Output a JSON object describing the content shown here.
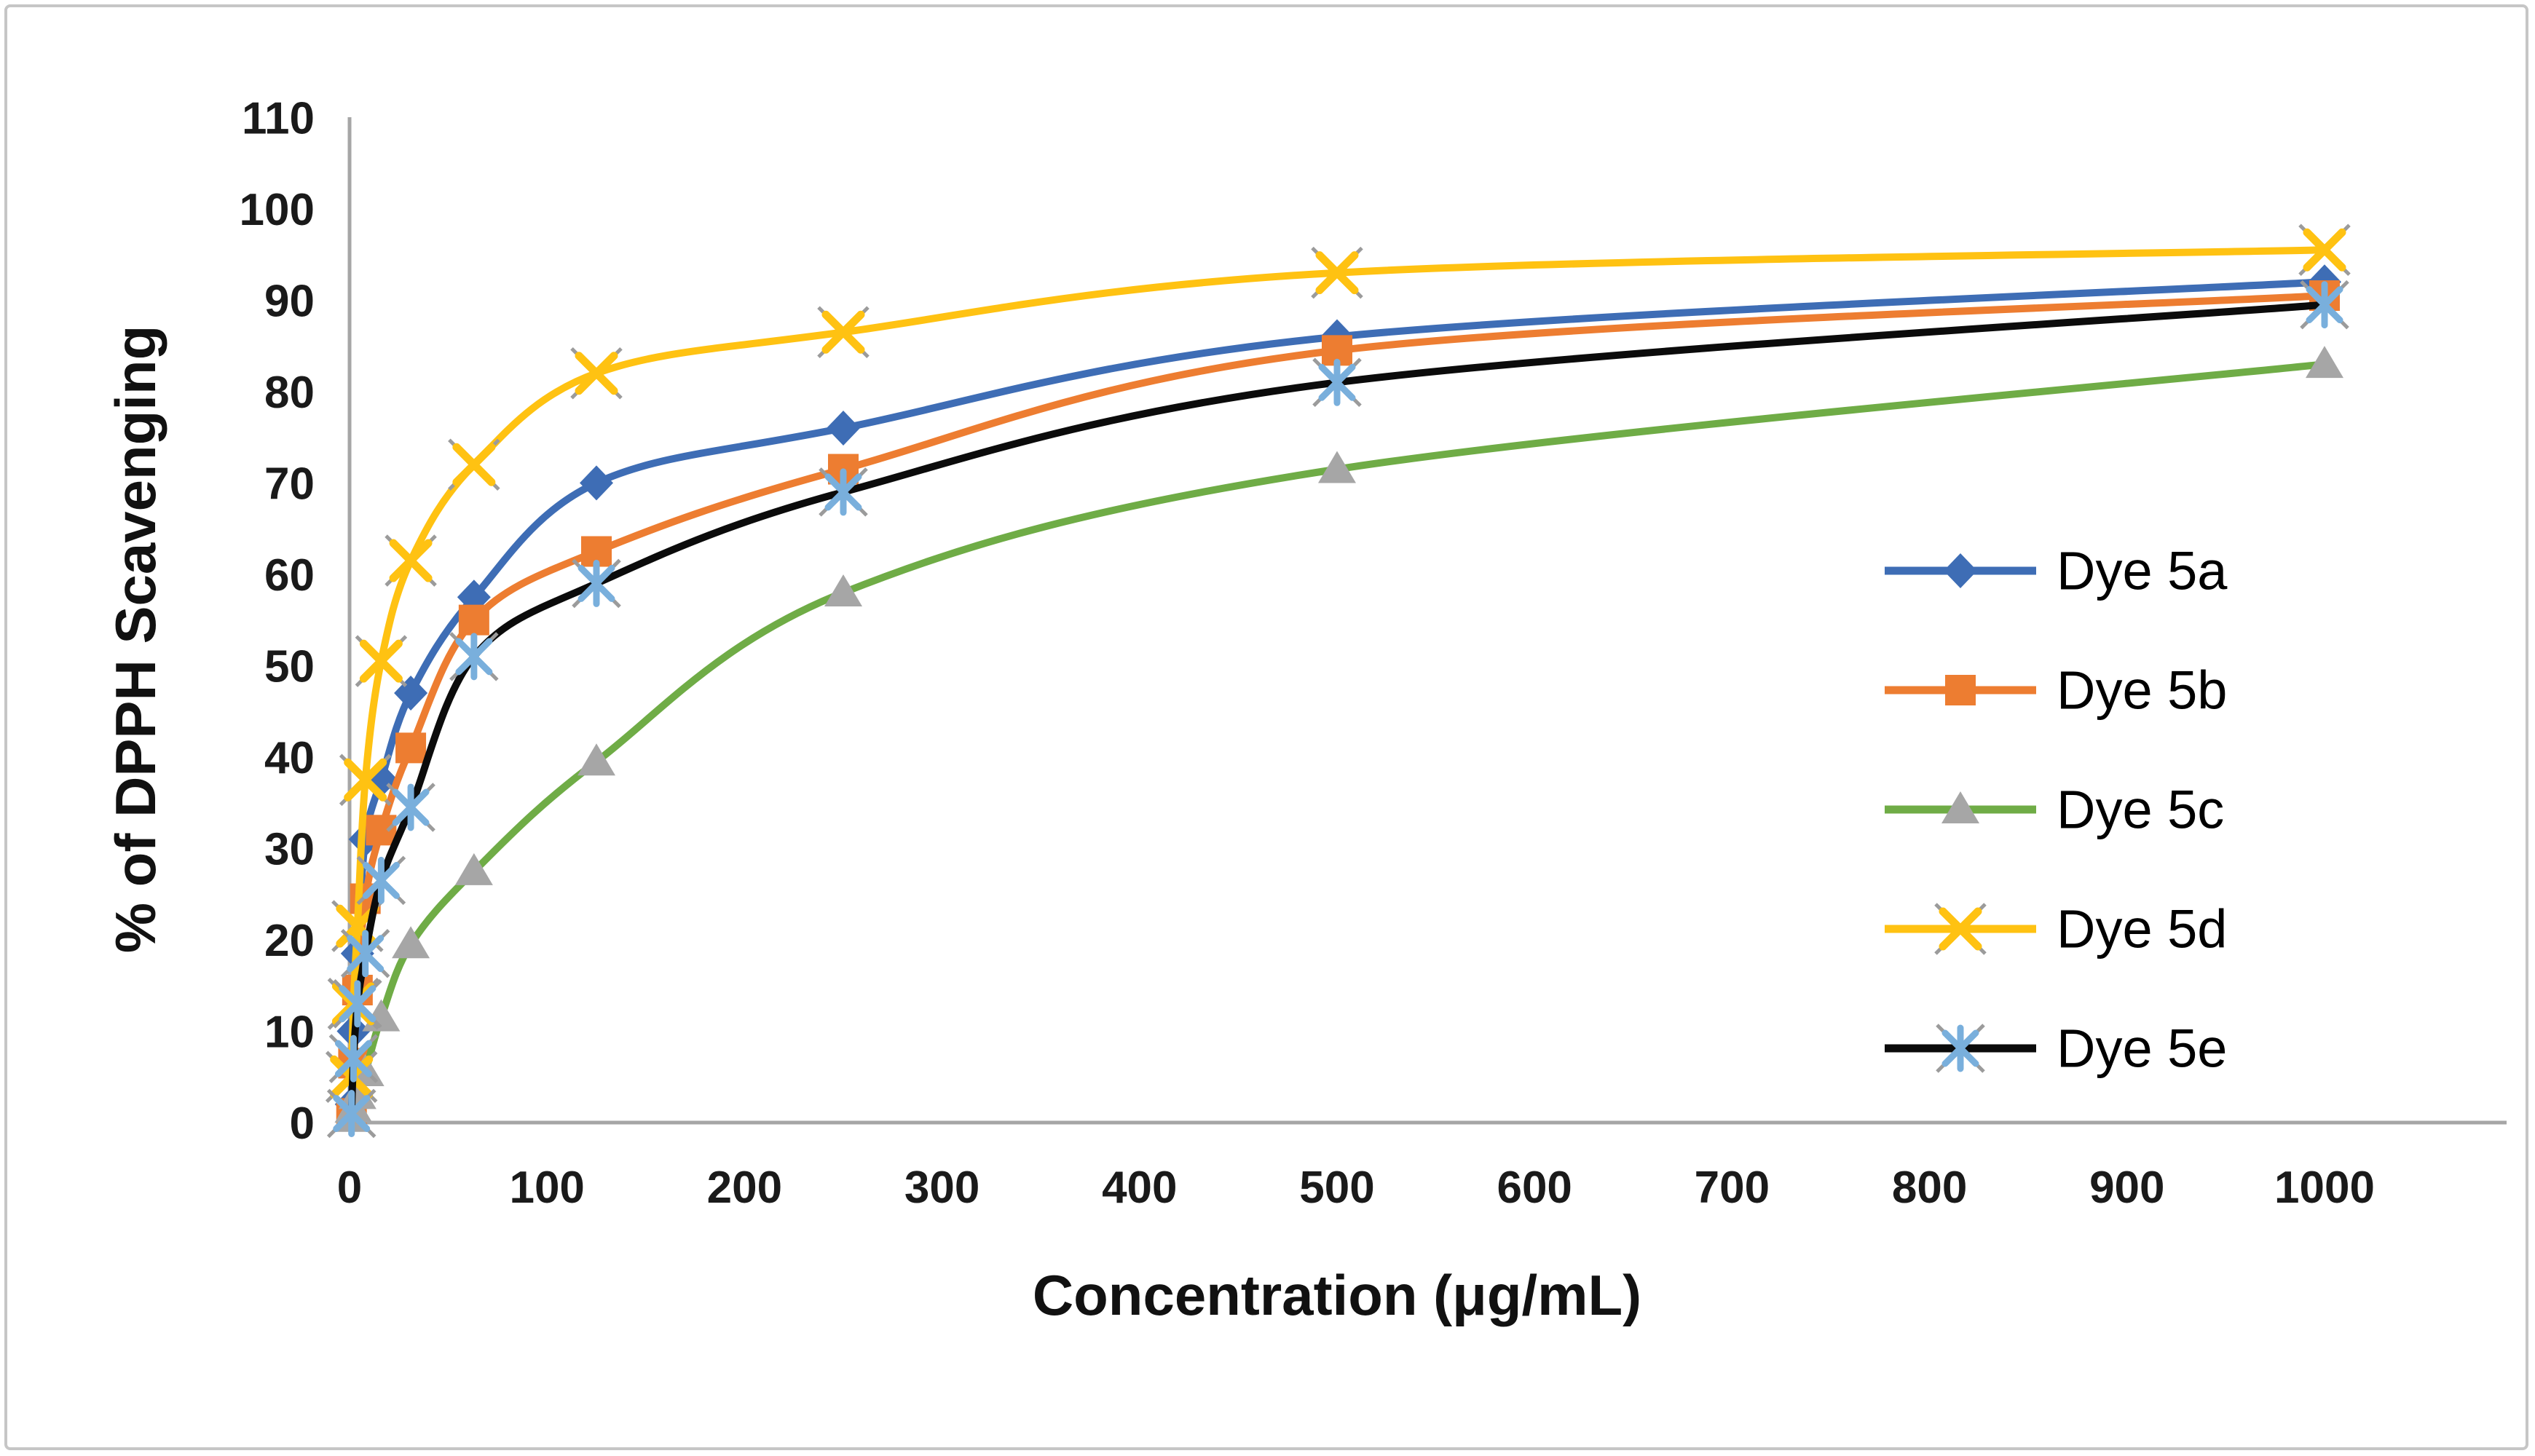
{
  "figure": {
    "background": "#ffffff",
    "border_color": "#c6c6c6",
    "axis_line_color": "#a6a6a6"
  },
  "chart_data": {
    "type": "line",
    "title": "",
    "xlabel": "Concentration (μg/mL)",
    "ylabel": "% of DPPH  Scavenging",
    "grid": false,
    "legend_position": "right-middle",
    "xlim": [
      0,
      1092
    ],
    "ylim": [
      0,
      110
    ],
    "x_tick_labels": [
      "0",
      "100",
      "200",
      "300",
      "400",
      "500",
      "600",
      "700",
      "800",
      "900",
      "1000"
    ],
    "x_tick_values": [
      0,
      100,
      200,
      300,
      400,
      500,
      600,
      700,
      800,
      900,
      1000
    ],
    "y_tick_labels": [
      "0",
      "10",
      "20",
      "30",
      "40",
      "50",
      "60",
      "70",
      "80",
      "90",
      "100",
      "110"
    ],
    "y_tick_values": [
      0,
      10,
      20,
      30,
      40,
      50,
      60,
      70,
      80,
      90,
      100,
      110
    ],
    "x": [
      1,
      2,
      4,
      8,
      16,
      31,
      63,
      125,
      250,
      500,
      1000
    ],
    "series": [
      {
        "name": "Dye 5a",
        "line_color": "#3e6db5",
        "marker": "diamond",
        "marker_color": "#3e6db5",
        "values": [
          2,
          10,
          18.5,
          31,
          37.5,
          47,
          57.5,
          70,
          76,
          86,
          92
        ]
      },
      {
        "name": "Dye 5b",
        "line_color": "#ed7d31",
        "marker": "square",
        "marker_color": "#ed7d31",
        "values": [
          1,
          6.5,
          14.5,
          24.5,
          32,
          41,
          55,
          62.5,
          71.5,
          84.5,
          90.5
        ]
      },
      {
        "name": "Dye 5c",
        "line_color": "#6fac46",
        "marker": "triangle",
        "marker_color": "#a6a6a6",
        "values": [
          0.5,
          1.5,
          3,
          5.5,
          11.5,
          19.5,
          27.5,
          39.5,
          58,
          71.5,
          83
        ]
      },
      {
        "name": "Dye 5d",
        "line_color": "#ffc212",
        "marker": "xcross",
        "marker_color": "#ffc212",
        "values": [
          5,
          13,
          21.5,
          37.5,
          50.5,
          61.5,
          72,
          82,
          86.5,
          93,
          95.5
        ]
      },
      {
        "name": "Dye 5e",
        "line_color": "#0b0b0b",
        "marker": "asterisk",
        "marker_color": "#79afdc",
        "values": [
          1,
          7,
          13,
          18.5,
          26.5,
          34.5,
          51,
          59,
          69,
          81,
          89.5
        ]
      }
    ]
  }
}
